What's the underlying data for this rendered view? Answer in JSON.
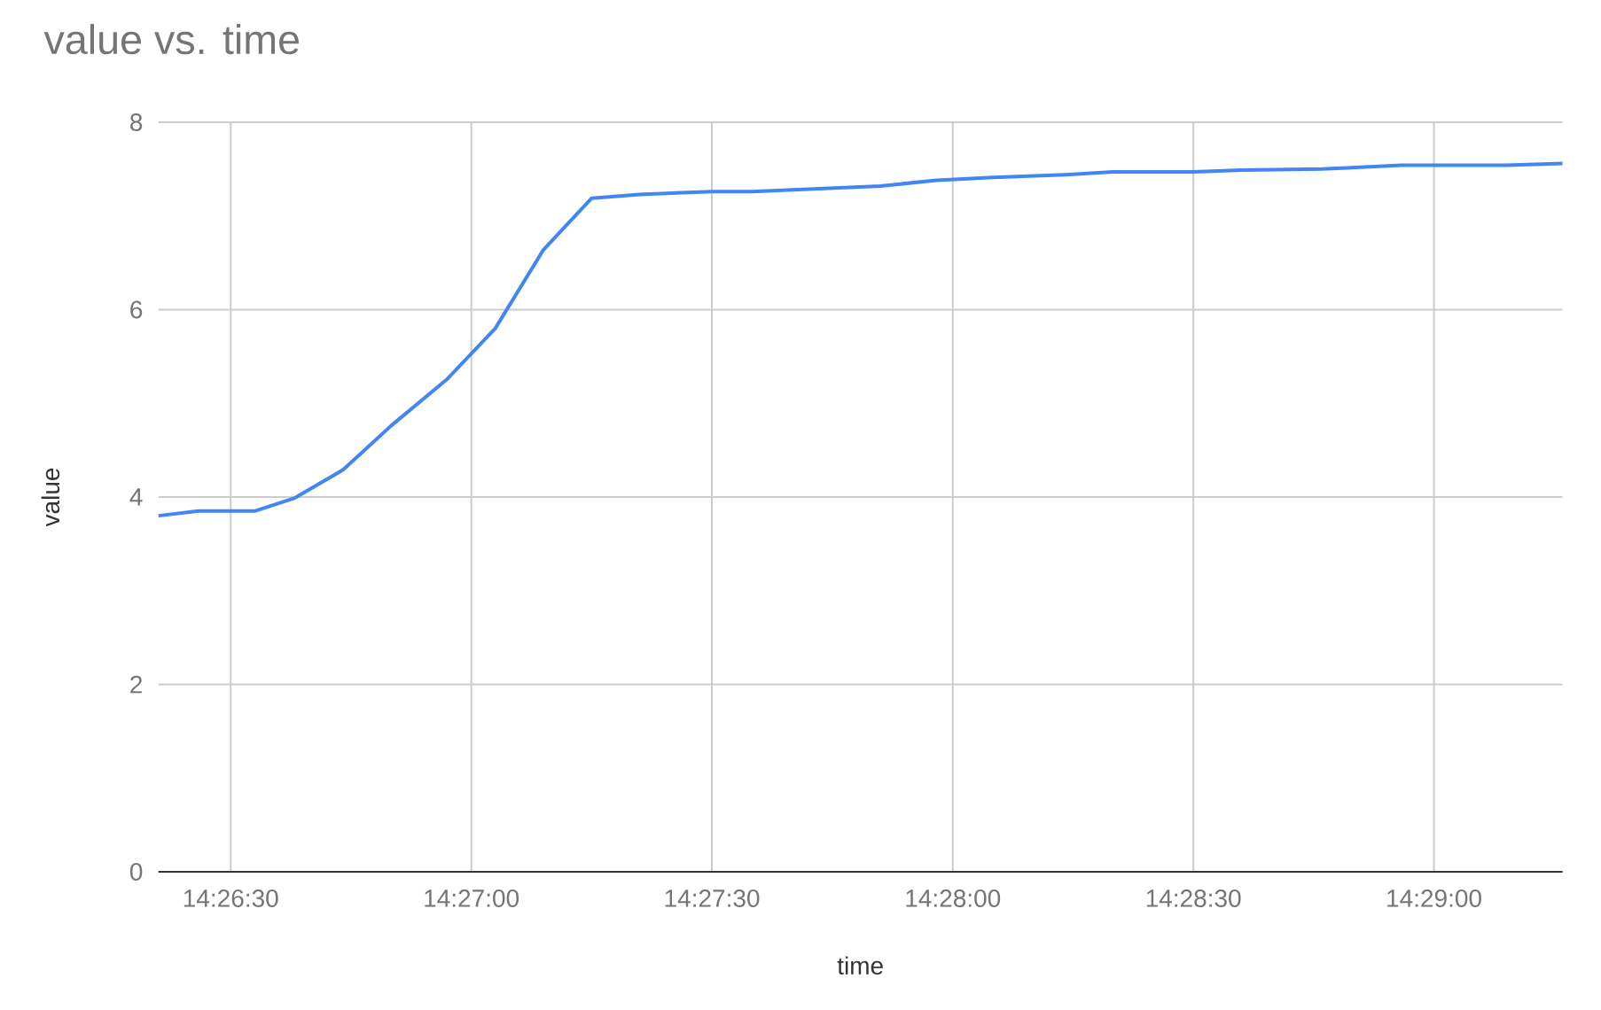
{
  "chart_data": {
    "type": "line",
    "title": "value vs. time",
    "xlabel": "time",
    "ylabel": "value",
    "x": [
      14.43917,
      14.44056,
      14.4425,
      14.44389,
      14.44556,
      14.44722,
      14.44917,
      14.45083,
      14.4525,
      14.45417,
      14.45583,
      14.45833,
      14.45972,
      14.46417,
      14.46611,
      14.46806,
      14.47056,
      14.47222,
      14.475,
      14.47667,
      14.47944,
      14.48222,
      14.48583,
      14.48778
    ],
    "values": [
      3.8,
      3.85,
      3.85,
      3.99,
      4.29,
      4.76,
      5.26,
      5.8,
      6.64,
      7.19,
      7.23,
      7.26,
      7.26,
      7.32,
      7.38,
      7.41,
      7.44,
      7.47,
      7.47,
      7.49,
      7.5,
      7.54,
      7.54,
      7.56
    ],
    "color": "#4285f4",
    "xlim": [
      14.43917,
      14.48778
    ],
    "xticks": [
      {
        "value": 14.44167,
        "label": "14:26:30"
      },
      {
        "value": 14.45,
        "label": "14:27:00"
      },
      {
        "value": 14.45833,
        "label": "14:27:30"
      },
      {
        "value": 14.46667,
        "label": "14:28:00"
      },
      {
        "value": 14.475,
        "label": "14:28:30"
      },
      {
        "value": 14.48333,
        "label": "14:29:00"
      }
    ],
    "ylim": [
      0,
      8
    ],
    "yticks": [
      0,
      2,
      4,
      6,
      8
    ],
    "grid": true
  }
}
